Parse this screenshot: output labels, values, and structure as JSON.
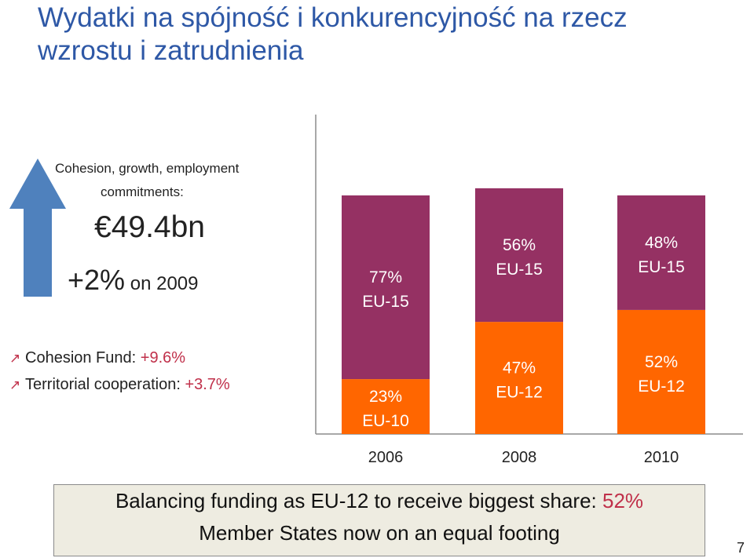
{
  "slide": {
    "title": "Wydatki na spójność i konkurencyjność na rzecz wzrostu i zatrudnienia",
    "page_number": "7"
  },
  "kpi": {
    "line1": "Cohesion, growth, employment",
    "line2": "commitments:",
    "amount": "€49.4bn",
    "change_value": "+2%",
    "change_suffix": " on 2009",
    "arrow_color": "#4f81bd"
  },
  "bullets": [
    {
      "label": "Cohesion Fund: ",
      "value": "+9.6%"
    },
    {
      "label": "Territorial cooperation: ",
      "value": "+3.7%"
    }
  ],
  "footnote": {
    "line1_prefix": "Balancing funding as EU-12 to receive biggest share: ",
    "line1_value": "52%",
    "line2": "Member States now on an equal footing"
  },
  "colors": {
    "old_members": "#953163",
    "new_members": "#ff6600",
    "highlight": "#c0304a",
    "title": "#2e58a6"
  },
  "chart_data": {
    "type": "bar",
    "stacked": true,
    "categories": [
      "2006",
      "2008",
      "2010"
    ],
    "series": [
      {
        "name_by_category": [
          "EU-10",
          "EU-12",
          "EU-12"
        ],
        "values": [
          23,
          47,
          52
        ],
        "color": "#ff6600"
      },
      {
        "name_by_category": [
          "EU-15",
          "EU-15",
          "EU-15"
        ],
        "values": [
          77,
          56,
          48
        ],
        "color": "#953163"
      }
    ],
    "data_labels": [
      [
        {
          "pct": "23%",
          "group": "EU-10"
        },
        {
          "pct": "77%",
          "group": "EU-15"
        }
      ],
      [
        {
          "pct": "47%",
          "group": "EU-12"
        },
        {
          "pct": "56%",
          "group": "EU-15"
        }
      ],
      [
        {
          "pct": "52%",
          "group": "EU-12"
        },
        {
          "pct": "48%",
          "group": "EU-15"
        }
      ]
    ],
    "legend": "none",
    "grid": false
  }
}
